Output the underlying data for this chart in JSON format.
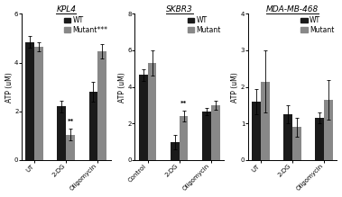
{
  "panels": [
    {
      "title": "KPL4",
      "categories": [
        "UT",
        "2-DG",
        "Oligomycin"
      ],
      "wt_values": [
        4.85,
        2.2,
        2.8
      ],
      "wt_errors": [
        0.25,
        0.25,
        0.4
      ],
      "mut_values": [
        4.65,
        1.05,
        4.45
      ],
      "mut_errors": [
        0.2,
        0.25,
        0.3
      ],
      "ylim": [
        0,
        6
      ],
      "yticks": [
        0,
        2,
        4,
        6
      ],
      "ylabel": "ATP (uM)",
      "sig_wt": {
        "2-DG": false
      },
      "sig_mut": {
        "2-DG": "**"
      },
      "legend_sig": "***"
    },
    {
      "title": "SKBR3",
      "categories": [
        "Control",
        "2-DG",
        "Oligomycin"
      ],
      "wt_values": [
        4.65,
        1.0,
        2.65
      ],
      "wt_errors": [
        0.3,
        0.4,
        0.2
      ],
      "mut_values": [
        5.3,
        2.4,
        3.0
      ],
      "mut_errors": [
        0.7,
        0.3,
        0.25
      ],
      "ylim": [
        0,
        8
      ],
      "yticks": [
        0,
        2,
        4,
        6,
        8
      ],
      "ylabel": "ATP (uM)",
      "sig_wt": {},
      "sig_mut": {
        "2-DG": "**"
      },
      "legend_sig": ""
    },
    {
      "title": "MDA-MB-468",
      "categories": [
        "UT",
        "2-DG",
        "Oligomycin"
      ],
      "wt_values": [
        1.6,
        1.25,
        1.15
      ],
      "wt_errors": [
        0.35,
        0.25,
        0.15
      ],
      "mut_values": [
        2.15,
        0.9,
        1.65
      ],
      "mut_errors": [
        0.85,
        0.25,
        0.55
      ],
      "ylim": [
        0,
        4
      ],
      "yticks": [
        0,
        1,
        2,
        3,
        4
      ],
      "ylabel": "ATP (uM)",
      "sig_wt": {},
      "sig_mut": {},
      "legend_sig": ""
    }
  ],
  "wt_color": "#1a1a1a",
  "mut_color": "#888888",
  "bar_width": 0.28,
  "legend_labels": [
    "WT",
    "Mutant"
  ],
  "background_color": "#ffffff",
  "title_fontsize": 6.5,
  "label_fontsize": 5.5,
  "tick_fontsize": 5,
  "legend_fontsize": 5.5
}
